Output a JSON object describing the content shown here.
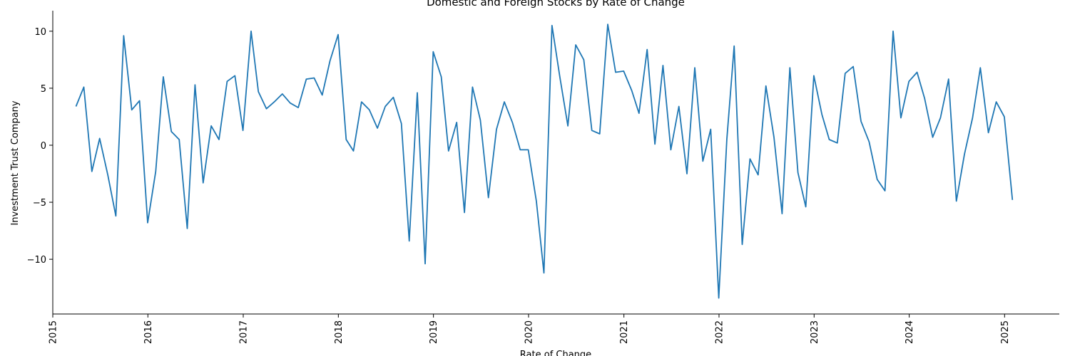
{
  "chart_data": {
    "type": "line",
    "title": "Domestic and Foreign Stocks by Rate of Change",
    "xlabel": "Rate of Change",
    "ylabel": "Investment Trust Company",
    "x_ticks": [
      "2015",
      "2016",
      "2017",
      "2018",
      "2019",
      "2020",
      "2021",
      "2022",
      "2023",
      "2024",
      "2025"
    ],
    "y_ticks": [
      10,
      5,
      0,
      -5,
      -10
    ],
    "y_tick_labels": [
      "10",
      "5",
      "0",
      "−5",
      "−10"
    ],
    "xlim": [
      "2015-01-01",
      "2025-07-30"
    ],
    "ylim": [
      -14.8,
      11.8
    ],
    "grid": false,
    "line_color": "#1f77b4",
    "x": [
      "2015-03-31",
      "2015-04-30",
      "2015-05-31",
      "2015-06-30",
      "2015-07-31",
      "2015-08-31",
      "2015-09-30",
      "2015-10-31",
      "2015-11-30",
      "2015-12-31",
      "2016-01-31",
      "2016-02-29",
      "2016-03-31",
      "2016-04-30",
      "2016-05-31",
      "2016-06-30",
      "2016-07-31",
      "2016-08-31",
      "2016-09-30",
      "2016-10-31",
      "2016-11-30",
      "2016-12-31",
      "2017-01-31",
      "2017-02-28",
      "2017-03-31",
      "2017-04-30",
      "2017-05-31",
      "2017-06-30",
      "2017-07-31",
      "2017-08-31",
      "2017-09-30",
      "2017-10-31",
      "2017-11-30",
      "2017-12-31",
      "2018-01-31",
      "2018-02-28",
      "2018-03-31",
      "2018-04-30",
      "2018-05-31",
      "2018-06-30",
      "2018-07-31",
      "2018-08-31",
      "2018-09-30",
      "2018-10-31",
      "2018-11-30",
      "2018-12-31",
      "2019-01-31",
      "2019-02-28",
      "2019-03-31",
      "2019-04-30",
      "2019-05-31",
      "2019-06-30",
      "2019-07-31",
      "2019-08-31",
      "2019-09-30",
      "2019-10-31",
      "2019-11-30",
      "2019-12-31",
      "2020-01-31",
      "2020-02-29",
      "2020-03-31",
      "2020-04-30",
      "2020-05-31",
      "2020-06-30",
      "2020-07-31",
      "2020-08-31",
      "2020-09-30",
      "2020-10-31",
      "2020-11-30",
      "2020-12-31",
      "2021-01-31",
      "2021-02-28",
      "2021-03-31",
      "2021-04-30",
      "2021-05-31",
      "2021-06-30",
      "2021-07-31",
      "2021-08-31",
      "2021-09-30",
      "2021-10-31",
      "2021-11-30",
      "2021-12-31",
      "2022-01-31",
      "2022-02-28",
      "2022-03-31",
      "2022-04-30",
      "2022-05-31",
      "2022-06-30",
      "2022-07-31",
      "2022-08-31",
      "2022-09-30",
      "2022-10-31",
      "2022-11-30",
      "2022-12-31",
      "2023-01-31",
      "2023-02-28",
      "2023-03-31",
      "2023-04-30",
      "2023-05-31",
      "2023-06-30",
      "2023-07-31",
      "2023-08-31",
      "2023-09-30",
      "2023-10-31",
      "2023-11-30",
      "2023-12-31",
      "2024-01-31",
      "2024-02-29",
      "2024-03-31",
      "2024-04-30",
      "2024-05-31",
      "2024-06-30",
      "2024-07-31",
      "2024-08-31",
      "2024-09-30",
      "2024-10-31",
      "2024-11-30",
      "2024-12-31",
      "2025-01-31"
    ],
    "y": [
      3.4,
      5.1,
      -2.3,
      0.6,
      -2.6,
      -6.2,
      9.6,
      3.1,
      3.9,
      -6.8,
      -2.3,
      6.0,
      1.2,
      0.5,
      -7.3,
      5.3,
      -3.3,
      1.7,
      0.5,
      5.6,
      6.1,
      1.3,
      10.0,
      4.7,
      3.2,
      3.8,
      4.5,
      3.7,
      3.3,
      5.8,
      5.9,
      4.4,
      7.4,
      9.7,
      0.5,
      -0.5,
      3.8,
      3.1,
      1.5,
      3.4,
      4.2,
      1.9,
      -8.4,
      4.6,
      -10.4,
      8.2,
      6.0,
      -0.5,
      2.0,
      -5.9,
      5.1,
      2.2,
      -4.6,
      1.4,
      3.8,
      2.0,
      -0.4,
      -0.4,
      -4.9,
      -11.2,
      10.5,
      6.0,
      1.7,
      8.8,
      7.5,
      1.3,
      1.0,
      10.6,
      6.4,
      6.5,
      4.8,
      2.8,
      8.4,
      0.1,
      7.0,
      -0.4,
      3.4,
      -2.5,
      6.8,
      -1.4,
      1.4,
      -13.4,
      0.5,
      8.7,
      -8.7,
      -1.2,
      -2.6,
      5.2,
      0.7,
      -6.0,
      6.8,
      -2.4,
      -5.4,
      6.1,
      2.7,
      0.5,
      0.2,
      6.3,
      6.9,
      2.1,
      0.3,
      -3.0,
      -4.0,
      10.0,
      2.4,
      5.6,
      6.4,
      4.1,
      0.7,
      2.4,
      5.8,
      -4.9,
      -0.8,
      2.4,
      6.8,
      1.1,
      3.8,
      2.5,
      -4.8
    ]
  }
}
